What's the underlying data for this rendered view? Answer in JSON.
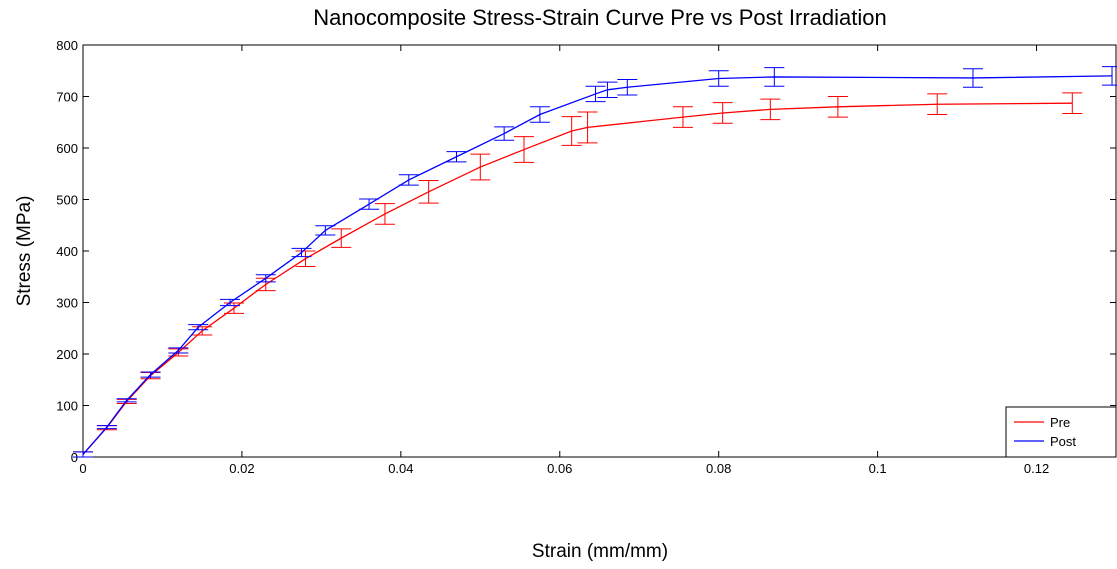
{
  "chart_data": {
    "type": "line",
    "title": "Nanocomposite Stress-Strain Curve Pre vs Post Irradiation",
    "x_label": "Strain (mm/mm)",
    "y_label": "Stress (MPa)",
    "xlim": [
      0,
      0.13
    ],
    "xticks": [
      0,
      0.02,
      0.04,
      0.06,
      0.08,
      0.1,
      0.12
    ],
    "ylim": [
      0,
      800
    ],
    "yticks": [
      0,
      100,
      200,
      300,
      400,
      500,
      600,
      700,
      800
    ],
    "legend": "lower right",
    "series": [
      {
        "name": "Pre",
        "color": "#ff0000",
        "x": [
          0,
          0.003,
          0.0055,
          0.0085,
          0.012,
          0.015,
          0.019,
          0.023,
          0.028,
          0.0325,
          0.038,
          0.0435,
          0.05,
          0.0555,
          0.0615,
          0.0635,
          0.0755,
          0.0805,
          0.0865,
          0.095,
          0.1075,
          0.1245
        ],
        "values": [
          5,
          57,
          108,
          158,
          203,
          245,
          289,
          335,
          385,
          425,
          472,
          515,
          563,
          597,
          633,
          640,
          660,
          668,
          675,
          680,
          685,
          687
        ],
        "errors": [
          5,
          4,
          4,
          6,
          7,
          8,
          10,
          12,
          15,
          18,
          20,
          22,
          25,
          25,
          28,
          30,
          20,
          20,
          20,
          20,
          20,
          20
        ]
      },
      {
        "name": "Post",
        "color": "#0000ff",
        "x": [
          0,
          0.003,
          0.0055,
          0.0085,
          0.012,
          0.0145,
          0.0185,
          0.023,
          0.0275,
          0.0305,
          0.036,
          0.041,
          0.047,
          0.053,
          0.0575,
          0.0645,
          0.066,
          0.0685,
          0.08,
          0.087,
          0.112,
          0.1295
        ],
        "values": [
          5,
          58,
          110,
          160,
          207,
          252,
          300,
          347,
          397,
          440,
          491,
          538,
          583,
          628,
          665,
          705,
          713,
          718,
          735,
          738,
          736,
          740
        ],
        "errors": [
          5,
          3,
          3,
          5,
          5,
          5,
          6,
          7,
          8,
          9,
          10,
          10,
          10,
          13,
          15,
          15,
          15,
          15,
          15,
          18,
          18,
          18
        ]
      }
    ]
  }
}
